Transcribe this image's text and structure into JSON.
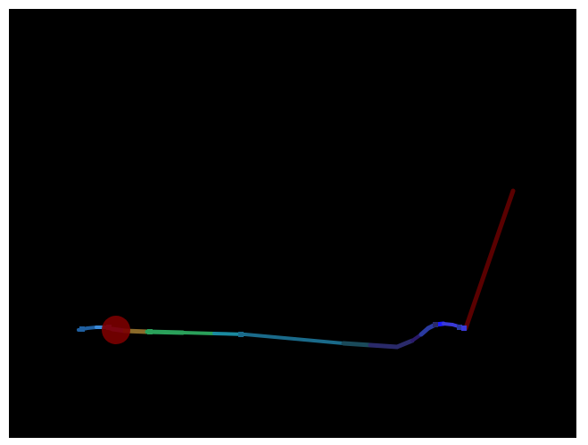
{
  "scene": {
    "background_color": "#000000",
    "border_color": "#ffffff",
    "marker_color": "#7a0000",
    "trajectory_segment_colors": [
      "#1f5fa0",
      "#3a8ad8",
      "#7a3ab0",
      "#8a6a2a",
      "#2aa05a",
      "#1a8aa0",
      "#1a6a8a",
      "#1a4a5a",
      "#2a2a6a",
      "#2a1a6a",
      "#2a3aa0",
      "#1a1aff",
      "#3a3ad8",
      "#3a6a8a",
      "#5a0000"
    ]
  }
}
